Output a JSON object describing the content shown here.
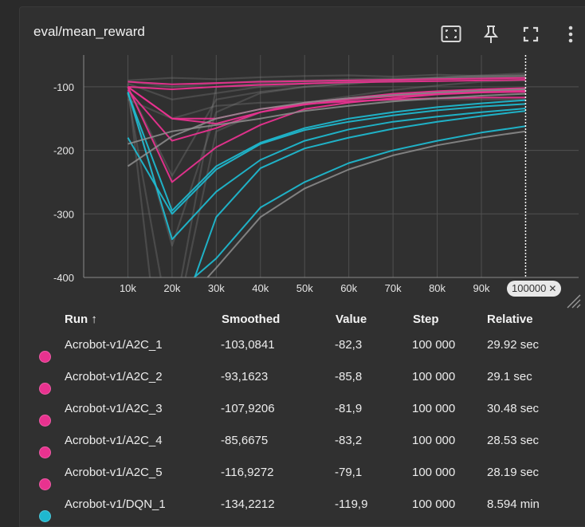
{
  "title": "eval/mean_reward",
  "toolbar": {
    "fit_icon": "fit-to-data-icon",
    "pin_icon": "pin-icon",
    "fullscreen_icon": "fullscreen-icon",
    "more_icon": "more-vertical-icon"
  },
  "colors": {
    "a2c": "#e8328f",
    "dqn": "#1fb8cf",
    "ghost": "#7a7a7a",
    "cursor": "#ffffff"
  },
  "x_badge": "100000",
  "chart_data": {
    "type": "line",
    "title": "eval/mean_reward",
    "xlabel": "",
    "ylabel": "",
    "xlim": [
      1,
      100000
    ],
    "ylim": [
      -400,
      -50
    ],
    "x_ticks": [
      "10k",
      "20k",
      "30k",
      "40k",
      "50k",
      "60k",
      "70k",
      "80k",
      "90k"
    ],
    "y_ticks": [
      {
        "v": -100,
        "label": "-100"
      },
      {
        "v": -200,
        "label": "-200"
      },
      {
        "v": -300,
        "label": "-300"
      },
      {
        "v": -400,
        "label": "-400"
      }
    ],
    "grid": true,
    "cursor_x": 100000,
    "series": [
      {
        "group": "a2c",
        "kind": "smooth",
        "x": [
          10000,
          20000,
          30000,
          40000,
          50000,
          60000,
          70000,
          80000,
          90000,
          100000
        ],
        "y": [
          -100,
          -150,
          -158,
          -140,
          -128,
          -120,
          -115,
          -111,
          -108,
          -106
        ]
      },
      {
        "group": "a2c",
        "kind": "smooth",
        "x": [
          10000,
          20000,
          30000,
          40000,
          50000,
          60000,
          70000,
          80000,
          90000,
          100000
        ],
        "y": [
          -105,
          -185,
          -165,
          -140,
          -125,
          -118,
          -111,
          -107,
          -104,
          -102
        ]
      },
      {
        "group": "a2c",
        "kind": "smooth",
        "x": [
          10000,
          20000,
          30000,
          40000,
          50000,
          60000,
          70000,
          80000,
          90000,
          100000
        ],
        "y": [
          -100,
          -250,
          -195,
          -160,
          -135,
          -125,
          -118,
          -112,
          -109,
          -108
        ]
      },
      {
        "group": "a2c",
        "kind": "smooth",
        "x": [
          10000,
          20000,
          30000,
          40000,
          50000,
          60000,
          70000,
          80000,
          90000,
          100000
        ],
        "y": [
          -92,
          -96,
          -94,
          -92,
          -91,
          -90,
          -89,
          -88,
          -87,
          -86
        ]
      },
      {
        "group": "a2c",
        "kind": "smooth",
        "x": [
          10000,
          20000,
          30000,
          40000,
          50000,
          60000,
          70000,
          80000,
          90000,
          100000
        ],
        "y": [
          -100,
          -104,
          -100,
          -97,
          -95,
          -93,
          -92,
          -91,
          -90,
          -89
        ]
      },
      {
        "group": "a2c",
        "kind": "smooth",
        "x": [
          10000,
          20000,
          30000,
          40000,
          50000,
          60000,
          70000,
          80000,
          90000,
          100000
        ],
        "y": [
          -100,
          -150,
          -150,
          -135,
          -127,
          -123,
          -120,
          -118,
          -117,
          -117
        ]
      },
      {
        "group": "dqn",
        "kind": "smooth",
        "x": [
          10000,
          20000,
          30000,
          40000,
          50000,
          60000,
          70000,
          80000,
          90000,
          100000
        ],
        "y": [
          -108,
          -340,
          -265,
          -215,
          -185,
          -167,
          -155,
          -147,
          -140,
          -134
        ]
      },
      {
        "group": "dqn",
        "kind": "smooth",
        "x": [
          10000,
          20000,
          30000,
          40000,
          50000,
          60000,
          70000,
          80000,
          90000,
          100000
        ],
        "y": [
          -180,
          -300,
          -230,
          -190,
          -168,
          -155,
          -145,
          -137,
          -131,
          -127
        ]
      },
      {
        "group": "dqn",
        "kind": "smooth",
        "x": [
          10000,
          20000,
          30000,
          40000,
          50000,
          60000,
          70000,
          80000,
          90000,
          100000
        ],
        "y": [
          -110,
          -295,
          -225,
          -188,
          -165,
          -150,
          -140,
          -132,
          -126,
          -121
        ]
      },
      {
        "group": "dqn",
        "kind": "smooth",
        "x": [
          25000,
          30000,
          40000,
          50000,
          60000,
          70000,
          80000,
          90000,
          100000
        ],
        "y": [
          -400,
          -370,
          -290,
          -250,
          -220,
          -200,
          -185,
          -172,
          -162
        ]
      },
      {
        "group": "dqn",
        "kind": "smooth",
        "x": [
          10000,
          15000,
          20000,
          30000,
          40000,
          50000,
          60000,
          70000,
          80000,
          90000,
          100000
        ],
        "y": [
          -400,
          -420,
          -500,
          -305,
          -228,
          -197,
          -180,
          -166,
          -155,
          -146,
          -138
        ]
      },
      {
        "group": "ghost",
        "kind": "smooth",
        "x": [
          10000,
          20000,
          30000,
          40000,
          50000,
          60000,
          70000,
          80000,
          90000,
          100000
        ],
        "y": [
          -190,
          -170,
          -160,
          -150,
          -138,
          -130,
          -123,
          -118,
          -114,
          -111
        ]
      },
      {
        "group": "ghost",
        "kind": "smooth",
        "x": [
          28000,
          30000,
          40000,
          50000,
          60000,
          70000,
          80000,
          90000,
          100000
        ],
        "y": [
          -400,
          -385,
          -305,
          -260,
          -230,
          -208,
          -192,
          -180,
          -170
        ]
      },
      {
        "group": "ghost",
        "kind": "smooth",
        "x": [
          10000,
          20000,
          30000,
          40000,
          50000,
          60000,
          70000,
          80000,
          90000,
          100000
        ],
        "y": [
          -225,
          -178,
          -150,
          -135,
          -125,
          -118,
          -113,
          -109,
          -106,
          -104
        ]
      },
      {
        "group": "ghost",
        "kind": "raw",
        "x": [
          10000,
          20000,
          30000,
          40000,
          50000,
          60000,
          70000,
          80000,
          90000,
          100000
        ],
        "y": [
          -90,
          -86,
          -88,
          -85,
          -83,
          -82,
          -84,
          -81,
          -83,
          -82
        ]
      },
      {
        "group": "ghost",
        "kind": "raw",
        "x": [
          10000,
          20000,
          30000,
          40000,
          50000,
          60000,
          70000,
          80000,
          90000,
          100000
        ],
        "y": [
          -92,
          -100,
          -95,
          -91,
          -90,
          -88,
          -87,
          -86,
          -85,
          -85
        ]
      },
      {
        "group": "ghost",
        "kind": "raw",
        "x": [
          10000,
          20000,
          30000,
          40000,
          50000,
          60000,
          70000,
          80000,
          90000,
          100000
        ],
        "y": [
          -95,
          -120,
          -110,
          -100,
          -95,
          -92,
          -90,
          -88,
          -86,
          -83
        ]
      },
      {
        "group": "ghost",
        "kind": "raw",
        "x": [
          10000,
          20000,
          30000,
          40000,
          50000,
          60000,
          70000,
          80000,
          90000,
          100000
        ],
        "y": [
          -100,
          -350,
          -140,
          -110,
          -100,
          -95,
          -90,
          -85,
          -82,
          -79
        ]
      },
      {
        "group": "ghost",
        "kind": "raw",
        "x": [
          10000,
          20000,
          30000,
          40000,
          50000,
          60000,
          70000,
          80000,
          90000,
          100000
        ],
        "y": [
          -110,
          -500,
          -170,
          -140,
          -125,
          -115,
          -105,
          -98,
          -92,
          -90
        ]
      },
      {
        "group": "ghost",
        "kind": "raw",
        "x": [
          10000,
          20000,
          30000,
          40000,
          50000,
          60000,
          70000,
          80000,
          90000,
          100000
        ],
        "y": [
          -100,
          -240,
          -120,
          -108,
          -100,
          -95,
          -90,
          -86,
          -83,
          -82
        ]
      },
      {
        "group": "ghost",
        "kind": "raw",
        "x": [
          10000,
          15000,
          20000,
          30000,
          40000,
          50000,
          60000,
          70000,
          80000,
          90000,
          100000
        ],
        "y": [
          -95,
          -400,
          -480,
          -100,
          -95,
          -92,
          -90,
          -88,
          -86,
          -84,
          -83
        ]
      },
      {
        "group": "ghost",
        "kind": "raw",
        "x": [
          10000,
          20000,
          30000,
          40000,
          50000,
          60000,
          70000,
          80000,
          90000,
          100000
        ],
        "y": [
          -120,
          -150,
          -130,
          -125,
          -124,
          -122,
          -121,
          -120,
          -120,
          -119.9
        ]
      }
    ]
  },
  "table": {
    "headers": {
      "run": "Run ↑",
      "smoothed": "Smoothed",
      "value": "Value",
      "step": "Step",
      "relative": "Relative"
    },
    "rows": [
      {
        "color": "#e8328f",
        "run": "Acrobot-v1/A2C_1",
        "smoothed": "-103,0841",
        "value": "-82,3",
        "step": "100 000",
        "relative": "29.92 sec"
      },
      {
        "color": "#e8328f",
        "run": "Acrobot-v1/A2C_2",
        "smoothed": "-93,1623",
        "value": "-85,8",
        "step": "100 000",
        "relative": "29.1 sec"
      },
      {
        "color": "#e8328f",
        "run": "Acrobot-v1/A2C_3",
        "smoothed": "-107,9206",
        "value": "-81,9",
        "step": "100 000",
        "relative": "30.48 sec"
      },
      {
        "color": "#e8328f",
        "run": "Acrobot-v1/A2C_4",
        "smoothed": "-85,6675",
        "value": "-83,2",
        "step": "100 000",
        "relative": "28.53 sec"
      },
      {
        "color": "#e8328f",
        "run": "Acrobot-v1/A2C_5",
        "smoothed": "-116,9272",
        "value": "-79,1",
        "step": "100 000",
        "relative": "28.19 sec"
      },
      {
        "color": "#1fb8cf",
        "run": "Acrobot-v1/DQN_1",
        "smoothed": "-134,2212",
        "value": "-119,9",
        "step": "100 000",
        "relative": "8.594 min"
      }
    ]
  }
}
